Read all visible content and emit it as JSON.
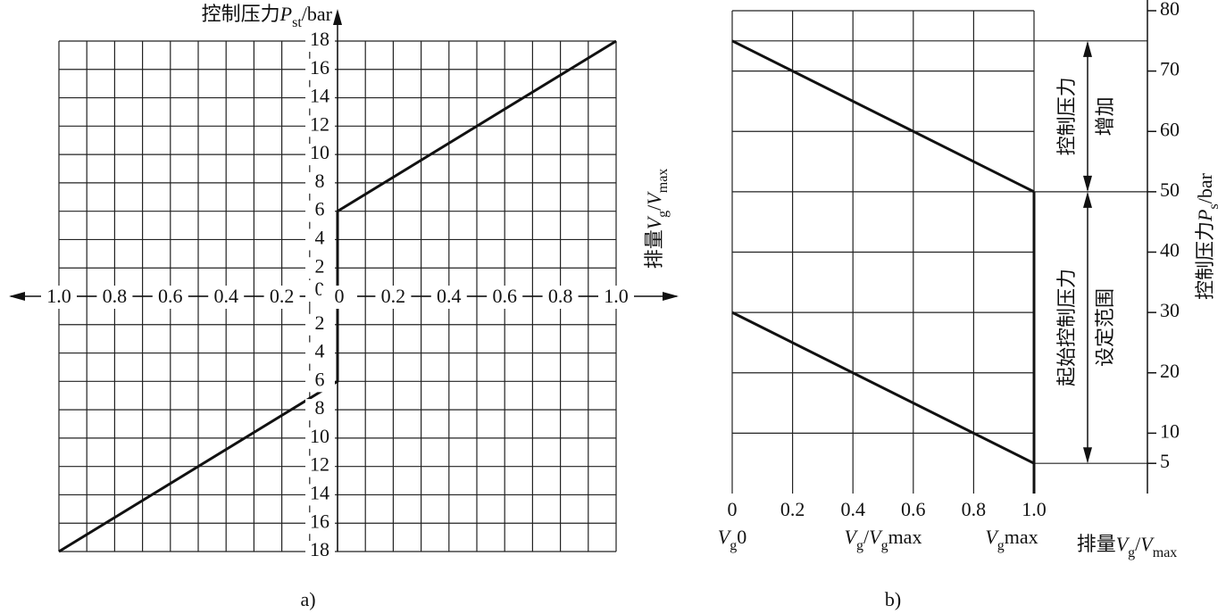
{
  "chart_data": [
    {
      "type": "line",
      "caption": "a)",
      "ylabel": [
        "控制压力",
        "P",
        "st",
        "/bar"
      ],
      "xlabel": [
        "排量",
        "V",
        "g",
        "/",
        "V",
        "max"
      ],
      "xlim": [
        0,
        1
      ],
      "ylim": [
        0,
        18
      ],
      "xticks": [
        0,
        0.2,
        0.4,
        0.6,
        0.8,
        {
          "value": 1,
          "label": "1.0"
        }
      ],
      "xticks_left": [
        0.2,
        0.4,
        0.6,
        0.8,
        {
          "value": 1,
          "label": "1.0"
        }
      ],
      "xgrid": [
        0.1,
        0.3,
        0.5,
        0.7,
        0.9
      ],
      "yticks": [
        0,
        2,
        4,
        6,
        8,
        10,
        12,
        14,
        16,
        18
      ],
      "yticks_lower": [
        2,
        4,
        6,
        8,
        10,
        12,
        14,
        16,
        18
      ],
      "series": [
        {
          "side": "upper",
          "x": [
            0,
            0,
            1
          ],
          "values": [
            0,
            6,
            18
          ]
        },
        {
          "side": "lower",
          "x": [
            0,
            0,
            1
          ],
          "values": [
            0,
            6,
            18
          ]
        }
      ]
    },
    {
      "type": "line",
      "caption": "b)",
      "ylabel": [
        "控制压力",
        "P",
        "s",
        "/bar"
      ],
      "xlabel": [
        "排量",
        "V",
        "g",
        "/",
        "V",
        "max"
      ],
      "xlim": [
        0,
        1
      ],
      "ylim": [
        0,
        80
      ],
      "xticks": [
        0,
        0.2,
        0.4,
        0.6,
        0.8,
        {
          "value": 1,
          "label": "1.0"
        }
      ],
      "yticks": [
        5,
        10,
        20,
        30,
        40,
        50,
        60,
        70,
        80
      ],
      "ygrid": [
        10,
        20,
        30,
        40,
        50,
        60,
        70,
        80
      ],
      "xnotes": [
        [
          "V",
          "g",
          "0"
        ],
        [
          "V",
          "g",
          "/",
          "V",
          "g",
          "max"
        ],
        [
          "V",
          "g",
          "max"
        ]
      ],
      "ref_lines": [
        {
          "y": 75,
          "x0": 0
        },
        {
          "y": 50,
          "x0": 1
        },
        {
          "y": 5,
          "x0": 1
        }
      ],
      "annotations": [
        {
          "lines": [
            "控制压力",
            "增加"
          ],
          "from": 75,
          "to": 50
        },
        {
          "lines": [
            "起始控制压力",
            "设定范围"
          ],
          "from": 50,
          "to": 5
        }
      ],
      "series": [
        {
          "x": [
            0,
            1
          ],
          "values": [
            75,
            50
          ]
        },
        {
          "x": [
            0,
            1
          ],
          "values": [
            30,
            5
          ]
        },
        {
          "x": [
            1,
            1
          ],
          "values": [
            50,
            0
          ]
        }
      ]
    }
  ]
}
